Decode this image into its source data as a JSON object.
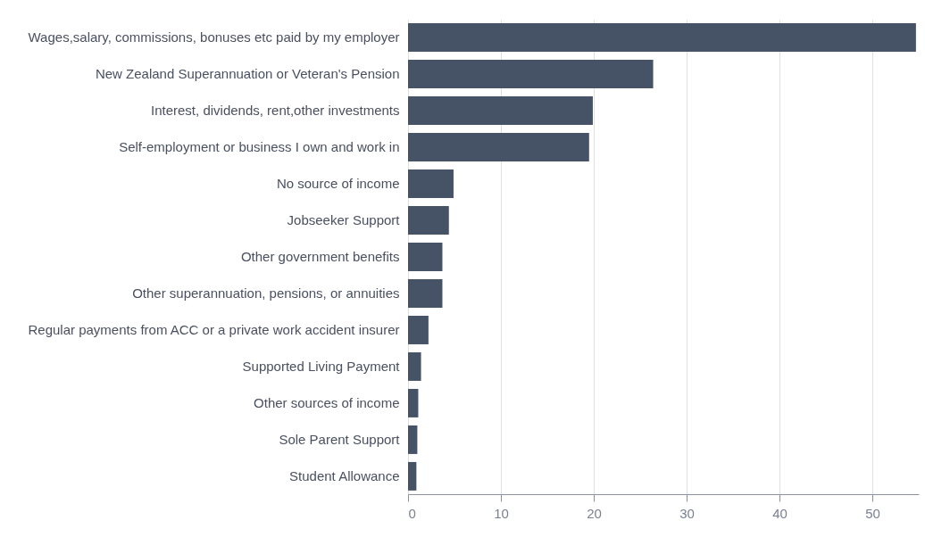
{
  "chart_data": {
    "type": "bar",
    "orientation": "horizontal",
    "categories": [
      "Wages,salary, commissions, bonuses etc paid by my employer",
      "New Zealand Superannuation or Veteran's Pension",
      "Interest, dividends, rent,other investments",
      "Self-employment or business I own and work in",
      "No source of income",
      "Jobseeker Support",
      "Other government benefits",
      "Other superannuation, pensions, or annuities",
      "Regular payments from ACC or a private work accident insurer",
      "Supported Living Payment",
      "Other sources of income",
      "Sole Parent Support",
      "Student Allowance"
    ],
    "values": [
      54.7,
      26.4,
      19.9,
      19.5,
      4.9,
      4.4,
      3.7,
      3.7,
      2.2,
      1.4,
      1.1,
      1.0,
      0.9
    ],
    "color": "#465366",
    "xlim": [
      0,
      55
    ],
    "xticks": [
      0,
      10,
      20,
      30,
      40,
      50
    ],
    "grid": "x"
  }
}
